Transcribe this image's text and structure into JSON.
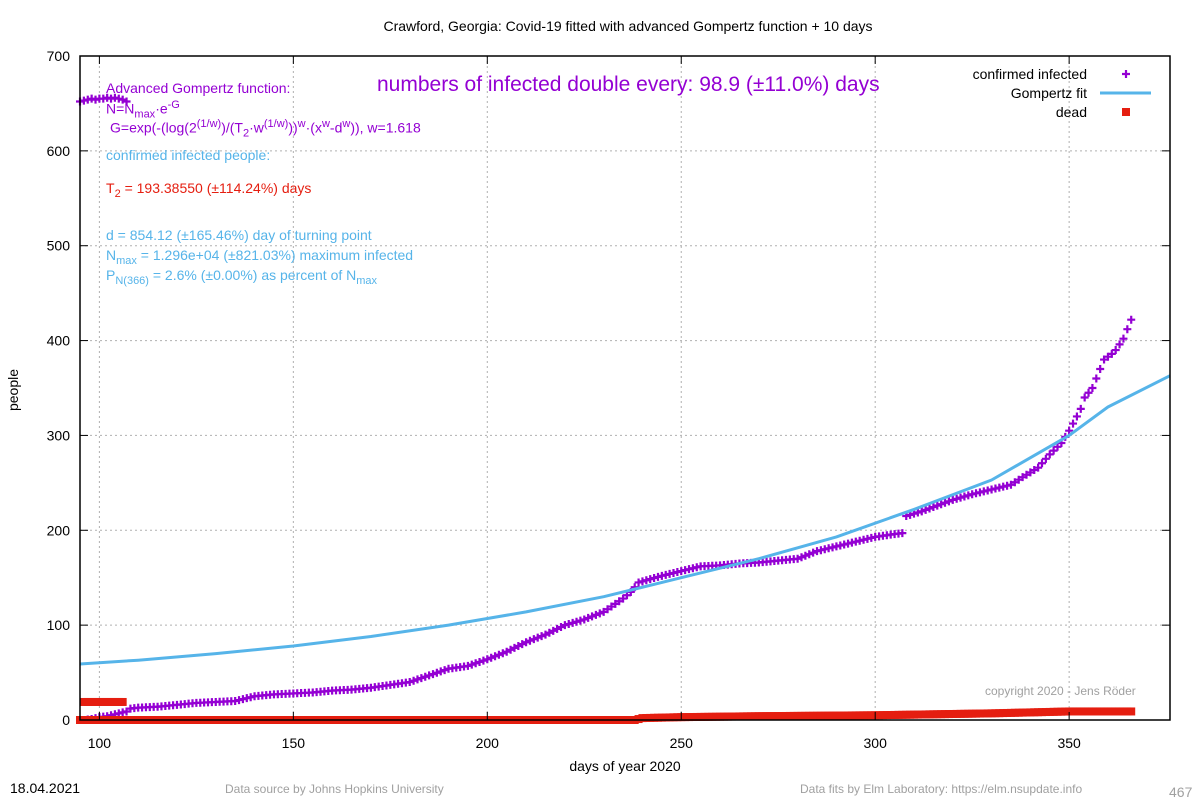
{
  "chart_data": {
    "type": "scatter",
    "title": "Crawford,  Georgia: Covid-19 fitted with advanced Gompertz function + 10 days",
    "xlabel": "days of year 2020",
    "ylabel": "people",
    "xlim": [
      95,
      376
    ],
    "ylim": [
      0,
      700
    ],
    "x_ticks": [
      100,
      150,
      200,
      250,
      300,
      350
    ],
    "y_ticks": [
      0,
      100,
      200,
      300,
      400,
      500,
      600,
      700
    ],
    "grid": true,
    "legend_position": "top-right",
    "legend": [
      {
        "label": "confirmed infected",
        "color": "#9400d3",
        "marker": "plus"
      },
      {
        "label": "Gompertz fit",
        "color": "#56b4e9",
        "marker": "line"
      },
      {
        "label": "dead",
        "color": "#e51e10",
        "marker": "square"
      }
    ],
    "series": [
      {
        "name": "confirmed infected",
        "color": "#9400d3",
        "points": [
          [
            95,
            652
          ],
          [
            96,
            653
          ],
          [
            97,
            654
          ],
          [
            98,
            655
          ],
          [
            99,
            654
          ],
          [
            100,
            655
          ],
          [
            101,
            655
          ],
          [
            102,
            656
          ],
          [
            103,
            655
          ],
          [
            104,
            656
          ],
          [
            105,
            655
          ],
          [
            106,
            654
          ],
          [
            107,
            652
          ],
          [
            96,
            0
          ],
          [
            98,
            1
          ],
          [
            100,
            3
          ],
          [
            102,
            4
          ],
          [
            104,
            6
          ],
          [
            106,
            8
          ],
          [
            107,
            9
          ],
          [
            108,
            12
          ],
          [
            110,
            13
          ],
          [
            115,
            14
          ],
          [
            120,
            16
          ],
          [
            125,
            18
          ],
          [
            130,
            19
          ],
          [
            135,
            20
          ],
          [
            140,
            25
          ],
          [
            145,
            27
          ],
          [
            150,
            28
          ],
          [
            155,
            29
          ],
          [
            160,
            31
          ],
          [
            165,
            32
          ],
          [
            170,
            34
          ],
          [
            175,
            37
          ],
          [
            180,
            40
          ],
          [
            185,
            47
          ],
          [
            190,
            54
          ],
          [
            195,
            57
          ],
          [
            200,
            64
          ],
          [
            205,
            72
          ],
          [
            210,
            82
          ],
          [
            215,
            90
          ],
          [
            220,
            100
          ],
          [
            225,
            106
          ],
          [
            230,
            114
          ],
          [
            235,
            128
          ],
          [
            237,
            135
          ],
          [
            239,
            145
          ],
          [
            245,
            152
          ],
          [
            250,
            157
          ],
          [
            255,
            162
          ],
          [
            260,
            163
          ],
          [
            265,
            165
          ],
          [
            270,
            166
          ],
          [
            275,
            168
          ],
          [
            280,
            170
          ],
          [
            285,
            178
          ],
          [
            290,
            183
          ],
          [
            295,
            188
          ],
          [
            300,
            193
          ],
          [
            305,
            196
          ],
          [
            307,
            197
          ],
          [
            308,
            215
          ],
          [
            312,
            220
          ],
          [
            316,
            226
          ],
          [
            320,
            232
          ],
          [
            325,
            238
          ],
          [
            330,
            243
          ],
          [
            335,
            248
          ],
          [
            338,
            256
          ],
          [
            342,
            266
          ],
          [
            345,
            280
          ],
          [
            348,
            292
          ],
          [
            350,
            305
          ],
          [
            352,
            320
          ],
          [
            353,
            328
          ],
          [
            354,
            340
          ],
          [
            355,
            345
          ],
          [
            356,
            350
          ],
          [
            357,
            360
          ],
          [
            358,
            370
          ],
          [
            359,
            380
          ],
          [
            361,
            386
          ],
          [
            362,
            390
          ],
          [
            363,
            396
          ],
          [
            364,
            402
          ],
          [
            365,
            412
          ],
          [
            366,
            422
          ]
        ]
      },
      {
        "name": "Gompertz fit",
        "color": "#56b4e9",
        "points": [
          [
            95,
            59
          ],
          [
            110,
            63
          ],
          [
            130,
            70
          ],
          [
            150,
            78
          ],
          [
            170,
            88
          ],
          [
            190,
            100
          ],
          [
            210,
            114
          ],
          [
            230,
            130
          ],
          [
            250,
            150
          ],
          [
            270,
            170
          ],
          [
            290,
            193
          ],
          [
            310,
            222
          ],
          [
            330,
            253
          ],
          [
            350,
            300
          ],
          [
            360,
            330
          ],
          [
            376,
            363
          ]
        ]
      },
      {
        "name": "dead",
        "color": "#e51e10",
        "points": [
          [
            95,
            0
          ],
          [
            110,
            0
          ],
          [
            130,
            0
          ],
          [
            160,
            0
          ],
          [
            200,
            0
          ],
          [
            238,
            0
          ],
          [
            240,
            2
          ],
          [
            250,
            3
          ],
          [
            270,
            4
          ],
          [
            300,
            5
          ],
          [
            330,
            7
          ],
          [
            340,
            8
          ],
          [
            350,
            9
          ],
          [
            366,
            9
          ],
          [
            96,
            19
          ],
          [
            98,
            19
          ],
          [
            100,
            19
          ],
          [
            102,
            19
          ],
          [
            104,
            19
          ],
          [
            106,
            19
          ]
        ]
      }
    ]
  },
  "annotations": {
    "func_title": "Advanced Gompertz function:",
    "double_every": "numbers of infected double every: 98.9 (±11.0%) days",
    "confirmed_label": "confirmed infected people:",
    "copyright": "copyright 2020 - Jens Röder"
  },
  "footer": {
    "date": "18.04.2021",
    "source": "Data source by Johns Hopkins University",
    "fits": "Data fits by Elm Laboratory: https://elm.nsupdate.info",
    "number": "467"
  }
}
